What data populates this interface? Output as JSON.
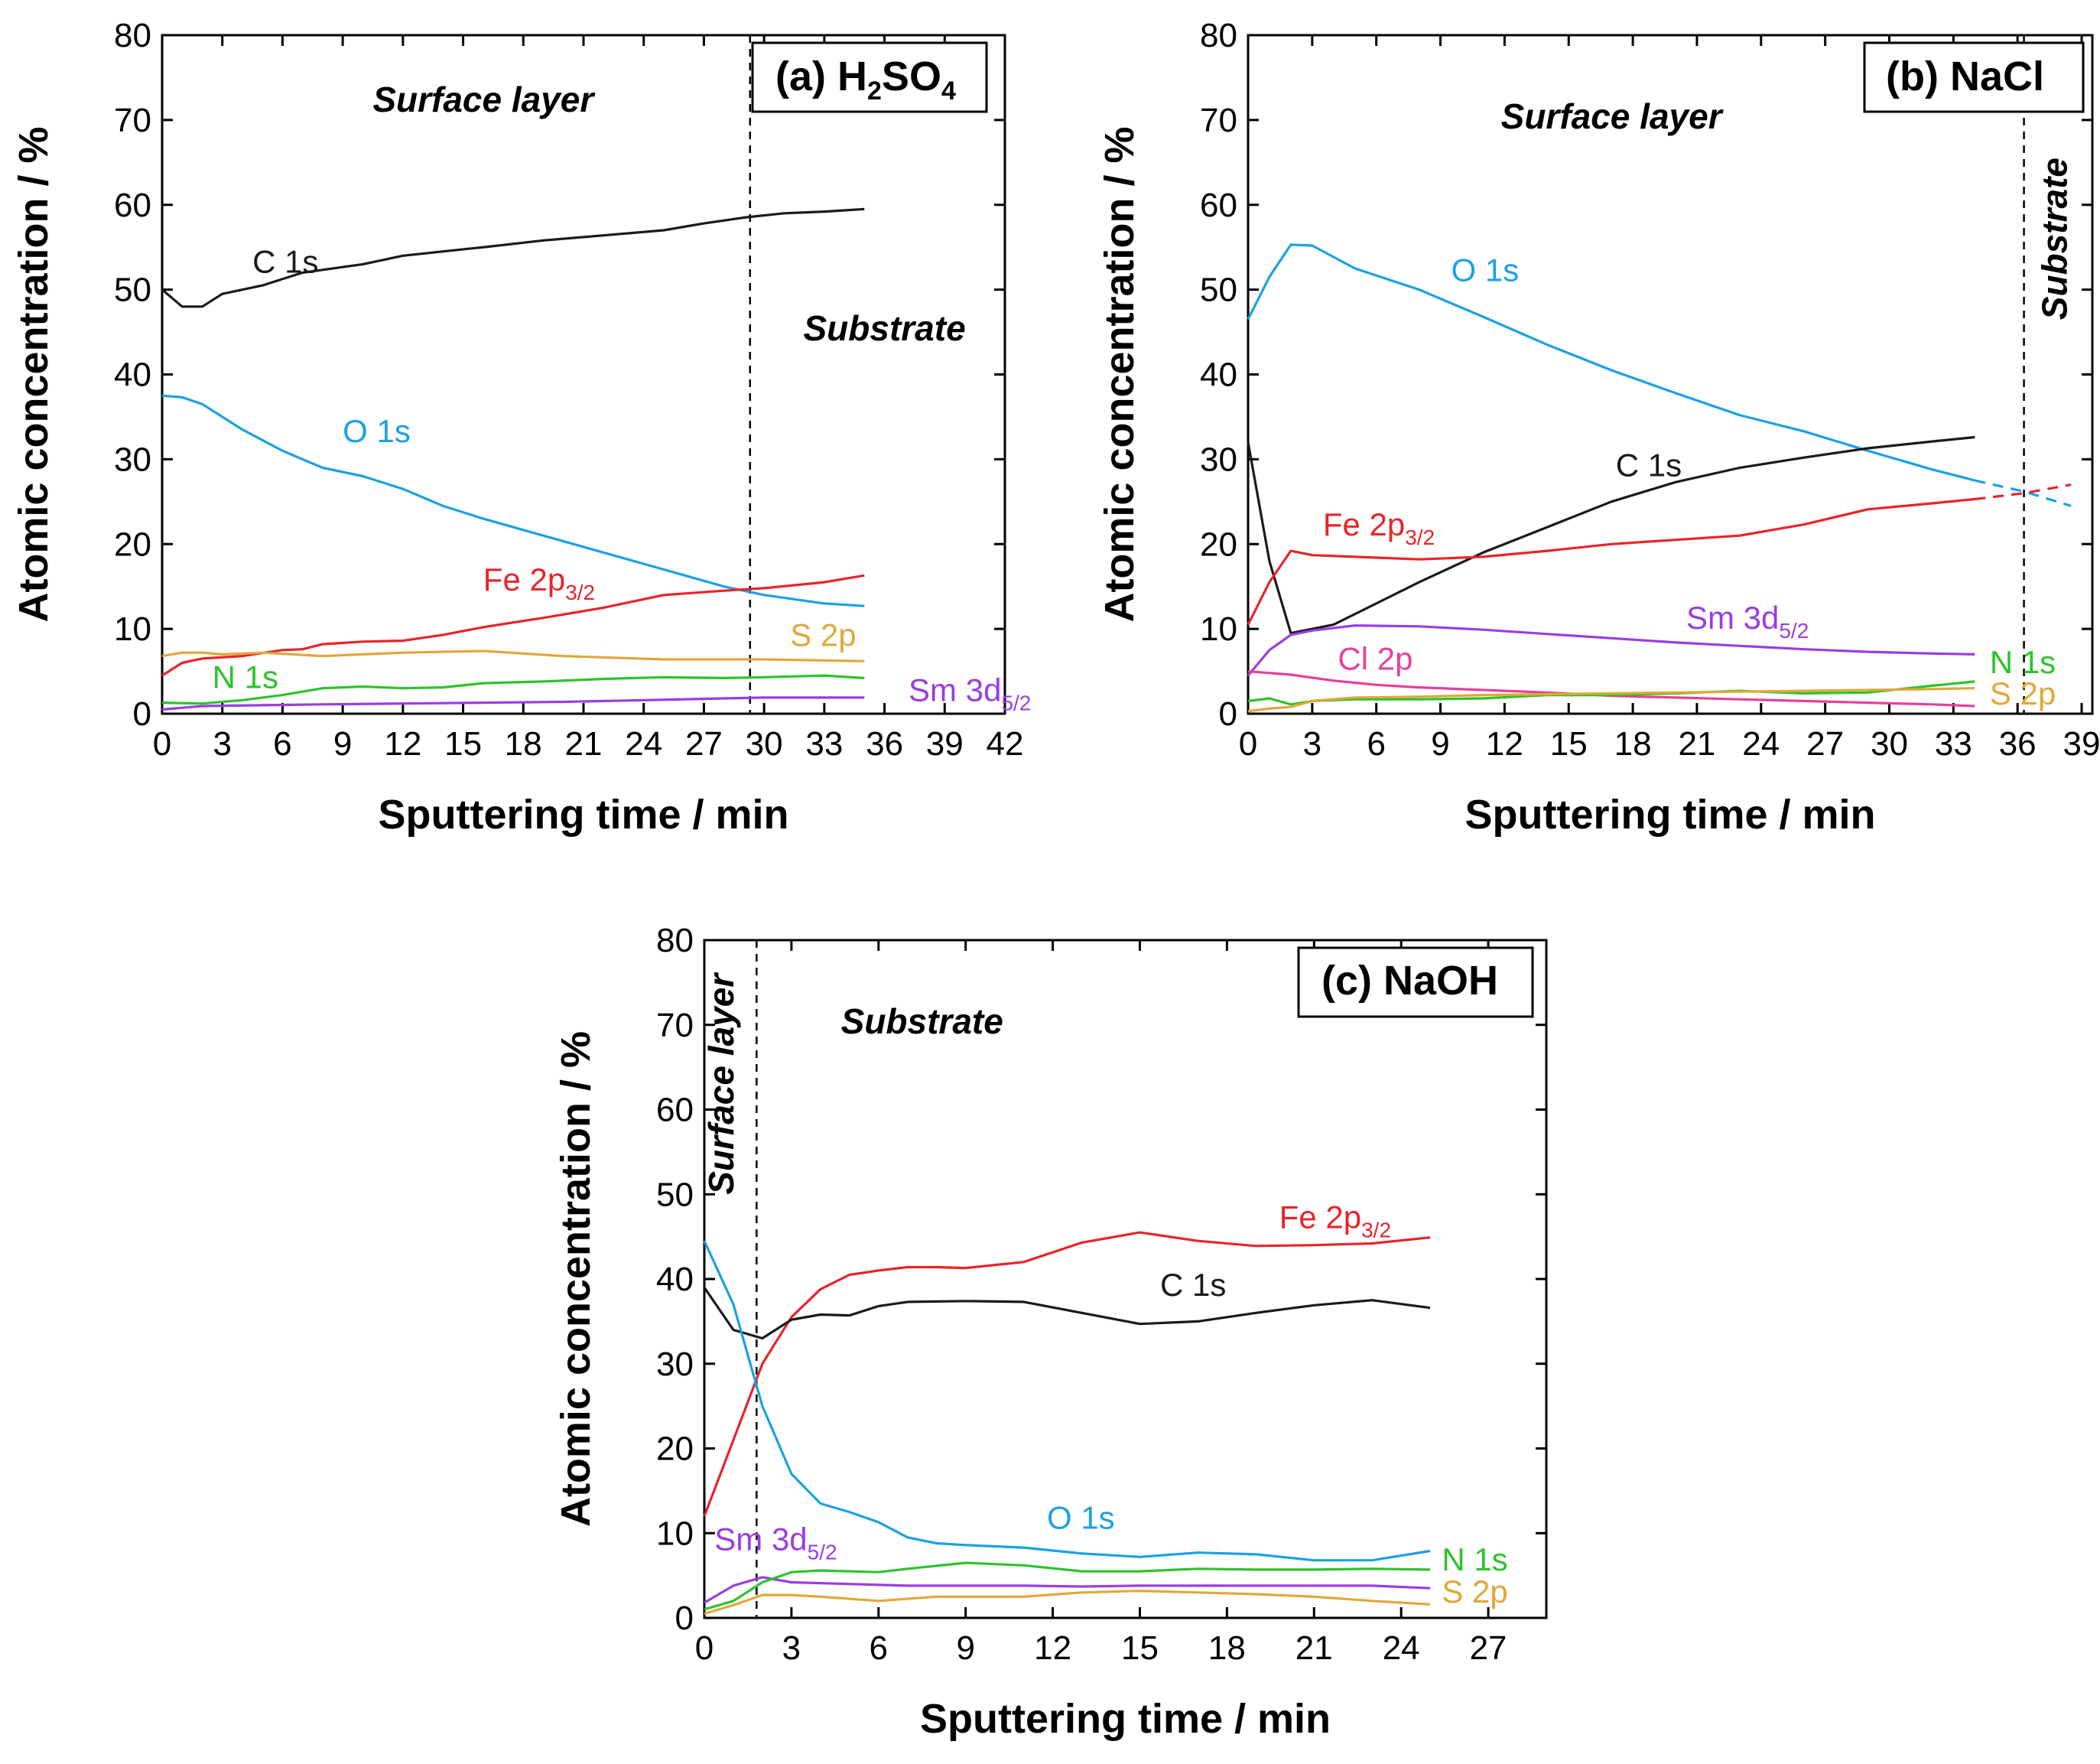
{
  "figure": {
    "x_axis_title": "Sputtering time / min",
    "y_axis_title": "Atomic concentration / %"
  },
  "chart_data": [
    {
      "type": "line",
      "id": "a",
      "title": "(a) H2SO4",
      "title_parts": {
        "prefix": "(a) H",
        "sub1": "2",
        "mid": "SO",
        "sub2": "4"
      },
      "xlabel": "Sputtering time / min",
      "ylabel": "Atomic concentration / %",
      "xlim": [
        0,
        42
      ],
      "ylim": [
        0,
        80
      ],
      "xticks": [
        0,
        3,
        6,
        9,
        12,
        15,
        18,
        21,
        24,
        27,
        30,
        33,
        36,
        39,
        42
      ],
      "yticks": [
        0,
        10,
        20,
        30,
        40,
        50,
        60,
        70,
        80
      ],
      "divider_x": 29.3,
      "regions": [
        {
          "text": "Surface layer",
          "x": 16,
          "y": 71,
          "rotate": false
        },
        {
          "text": "Substrate",
          "x": 36,
          "y": 44,
          "rotate": false
        }
      ],
      "series": [
        {
          "name": "C 1s",
          "label_main": "C 1s",
          "label_sub": "",
          "color": "#1a1a1a",
          "label_pos": [
            4.5,
            52
          ],
          "x": [
            0,
            1,
            2,
            3,
            5,
            7,
            10,
            12,
            14,
            16,
            19,
            22,
            25,
            27,
            29,
            31,
            33,
            35
          ],
          "y": [
            50,
            48,
            48,
            49.5,
            50.5,
            52,
            53,
            54,
            54.5,
            55,
            55.8,
            56.4,
            57,
            57.8,
            58.5,
            59,
            59.2,
            59.5
          ]
        },
        {
          "name": "O 1s",
          "label_main": "O 1s",
          "label_sub": "",
          "color": "#1ba1e2",
          "label_pos": [
            9,
            32
          ],
          "x": [
            0,
            1,
            2,
            3,
            4,
            6,
            8,
            10,
            12,
            14,
            16,
            19,
            22,
            25,
            28,
            30,
            33,
            35
          ],
          "y": [
            37.5,
            37.3,
            36.5,
            35,
            33.5,
            31,
            29,
            28,
            26.5,
            24.5,
            23,
            21,
            19,
            17,
            15,
            14,
            13,
            12.7
          ]
        },
        {
          "name": "Fe 2p3/2",
          "label_main": "Fe 2p",
          "label_sub": "3/2",
          "color": "#e8242a",
          "label_pos": [
            16,
            14.5
          ],
          "x": [
            0,
            1,
            2,
            4,
            6,
            7,
            8,
            10,
            12,
            14,
            16,
            19,
            22,
            25,
            28,
            30,
            33,
            35
          ],
          "y": [
            4.5,
            6,
            6.5,
            6.8,
            7.5,
            7.6,
            8.2,
            8.5,
            8.6,
            9.3,
            10.2,
            11.3,
            12.5,
            14,
            14.5,
            14.8,
            15.5,
            16.3
          ]
        },
        {
          "name": "S 2p",
          "label_main": "S 2p",
          "label_sub": "",
          "color": "#e0a83a",
          "label_pos": [
            31.3,
            8
          ],
          "x": [
            0,
            1,
            2,
            3,
            5,
            8,
            12,
            16,
            20,
            25,
            30,
            35
          ],
          "y": [
            6.8,
            7.2,
            7.2,
            7,
            7.2,
            6.8,
            7.2,
            7.4,
            6.8,
            6.4,
            6.4,
            6.2
          ]
        },
        {
          "name": "N 1s",
          "label_main": "N 1s",
          "label_sub": "",
          "color": "#2ec22e",
          "label_pos": [
            2.5,
            3
          ],
          "x": [
            0,
            2,
            4,
            6,
            8,
            10,
            12,
            14,
            16,
            19,
            22,
            25,
            28,
            30,
            33,
            35
          ],
          "y": [
            1.3,
            1.2,
            1.6,
            2.2,
            3,
            3.2,
            3,
            3.1,
            3.6,
            3.8,
            4.1,
            4.3,
            4.2,
            4.3,
            4.5,
            4.2
          ]
        },
        {
          "name": "Sm 3d5/2",
          "label_main": "Sm 3d",
          "label_sub": "5/2",
          "color": "#9b3de0",
          "label_pos": [
            37.2,
            1.5
          ],
          "x": [
            0,
            2,
            5,
            8,
            12,
            16,
            20,
            24,
            28,
            30,
            33,
            35
          ],
          "y": [
            0.5,
            0.9,
            1,
            1.1,
            1.2,
            1.3,
            1.4,
            1.6,
            1.8,
            1.9,
            1.9,
            1.9
          ]
        }
      ]
    },
    {
      "type": "line",
      "id": "b",
      "title": "(b) NaCl",
      "xlabel": "Sputtering time / min",
      "ylabel": "Atomic concentration / %",
      "xlim": [
        0,
        39.5
      ],
      "ylim": [
        0,
        80
      ],
      "xticks": [
        0,
        3,
        6,
        9,
        12,
        15,
        18,
        21,
        24,
        27,
        30,
        33,
        36,
        39
      ],
      "yticks": [
        0,
        10,
        20,
        30,
        40,
        50,
        60,
        70,
        80
      ],
      "divider_x": 36.3,
      "regions": [
        {
          "text": "Surface layer",
          "x": 17,
          "y": 69,
          "rotate": false
        },
        {
          "text": "Substrate",
          "x": 38.3,
          "y": 56,
          "rotate": true
        }
      ],
      "series": [
        {
          "name": "O 1s",
          "label_main": "O 1s",
          "label_sub": "",
          "color": "#1ba1e2",
          "label_pos": [
            9.5,
            51
          ],
          "x": [
            0,
            1,
            2,
            3,
            5,
            8,
            11,
            14,
            17,
            20,
            23,
            26,
            29,
            32,
            34
          ],
          "y": [
            46.5,
            51.5,
            55.3,
            55.2,
            52.5,
            50,
            46.8,
            43.5,
            40.5,
            37.8,
            35.2,
            33.3,
            31,
            28.8,
            27.5
          ],
          "extension": {
            "x": [
              34,
              36.3,
              38.5
            ],
            "y": [
              27.5,
              26.2,
              24.5
            ]
          }
        },
        {
          "name": "C 1s",
          "label_main": "C 1s",
          "label_sub": "",
          "color": "#1a1a1a",
          "label_pos": [
            17.2,
            28
          ],
          "x": [
            0,
            1,
            2,
            4,
            8,
            11,
            14,
            17,
            20,
            23,
            26,
            29,
            32,
            34
          ],
          "y": [
            32,
            18,
            9.5,
            10.5,
            15.5,
            19,
            22,
            25,
            27.3,
            29,
            30.2,
            31.3,
            32.1,
            32.6
          ]
        },
        {
          "name": "Fe 2p3/2",
          "label_main": "Fe 2p",
          "label_sub": "3/2",
          "color": "#e8242a",
          "label_pos": [
            3.5,
            21
          ],
          "x": [
            0,
            1,
            2,
            3,
            5,
            8,
            11,
            14,
            17,
            20,
            23,
            26,
            29,
            32,
            34
          ],
          "y": [
            10.5,
            15.5,
            19.2,
            18.7,
            18.5,
            18.2,
            18.5,
            19.2,
            20,
            20.5,
            21,
            22.3,
            24.1,
            24.8,
            25.3
          ],
          "extension": {
            "x": [
              34,
              36.3,
              38.5
            ],
            "y": [
              25.3,
              26,
              27
            ]
          }
        },
        {
          "name": "Sm 3d5/2",
          "label_main": "Sm 3d",
          "label_sub": "5/2",
          "color": "#9b3de0",
          "label_pos": [
            20.5,
            10
          ],
          "x": [
            0,
            1,
            2,
            3,
            5,
            8,
            11,
            14,
            17,
            20,
            23,
            26,
            29,
            32,
            34
          ],
          "y": [
            4.5,
            7.5,
            9.3,
            9.8,
            10.4,
            10.3,
            9.9,
            9.4,
            8.9,
            8.4,
            8,
            7.6,
            7.3,
            7.1,
            7
          ]
        },
        {
          "name": "Cl 2p",
          "label_main": "Cl 2p",
          "label_sub": "",
          "color": "#e6409a",
          "label_pos": [
            4.2,
            5.2
          ],
          "x": [
            0,
            2,
            4,
            6,
            8,
            11,
            14,
            17,
            20,
            23,
            26,
            29,
            32,
            34
          ],
          "y": [
            5,
            4.6,
            3.9,
            3.4,
            3.1,
            2.8,
            2.5,
            2.1,
            1.9,
            1.7,
            1.5,
            1.3,
            1.1,
            0.9
          ]
        },
        {
          "name": "N 1s",
          "label_main": "N 1s",
          "label_sub": "",
          "color": "#2ec22e",
          "label_pos": [
            34.7,
            4.8
          ],
          "x": [
            0,
            1,
            2,
            3,
            5,
            8,
            11,
            14,
            17,
            20,
            23,
            26,
            29,
            32,
            34
          ],
          "y": [
            1.5,
            1.8,
            1.1,
            1.5,
            1.7,
            1.7,
            1.8,
            2.2,
            2.2,
            2.4,
            2.7,
            2.4,
            2.5,
            3.3,
            3.8
          ]
        },
        {
          "name": "S 2p",
          "label_main": "S 2p",
          "label_sub": "",
          "color": "#e0a83a",
          "label_pos": [
            34.7,
            1.1
          ],
          "x": [
            0,
            1,
            2,
            3,
            5,
            8,
            11,
            14,
            17,
            20,
            23,
            26,
            29,
            32,
            34
          ],
          "y": [
            0.3,
            0.6,
            0.8,
            1.5,
            1.9,
            2,
            2.2,
            2.3,
            2.4,
            2.5,
            2.6,
            2.7,
            2.8,
            2.9,
            3
          ]
        }
      ]
    },
    {
      "type": "line",
      "id": "c",
      "title": "(c) NaOH",
      "xlabel": "Sputtering time / min",
      "ylabel": "Atomic concentration / %",
      "xlim": [
        0,
        29
      ],
      "ylim": [
        0,
        80
      ],
      "xticks": [
        0,
        3,
        6,
        9,
        12,
        15,
        18,
        21,
        24,
        27
      ],
      "yticks": [
        0,
        10,
        20,
        30,
        40,
        50,
        60,
        70,
        80
      ],
      "divider_x": 1.8,
      "regions": [
        {
          "text": "Surface layer",
          "x": 1.0,
          "y": 63,
          "rotate": true
        },
        {
          "text": "Substrate",
          "x": 7.5,
          "y": 69,
          "rotate": false
        }
      ],
      "series": [
        {
          "name": "Fe 2p3/2",
          "label_main": "Fe 2p",
          "label_sub": "3/2",
          "color": "#e8242a",
          "label_pos": [
            19.8,
            46
          ],
          "x": [
            0,
            1,
            2,
            3,
            4,
            5,
            6,
            7,
            8,
            9,
            11,
            13,
            15,
            17,
            19,
            21,
            23,
            25
          ],
          "y": [
            12,
            21,
            30,
            35.5,
            38.8,
            40.5,
            41,
            41.4,
            41.4,
            41.3,
            42,
            44.3,
            45.5,
            44.5,
            43.9,
            44,
            44.2,
            44.9
          ]
        },
        {
          "name": "C 1s",
          "label_main": "C 1s",
          "label_sub": "",
          "color": "#1a1a1a",
          "label_pos": [
            15.7,
            38
          ],
          "x": [
            0,
            1,
            2,
            3,
            4,
            5,
            6,
            7,
            9,
            11,
            13,
            15,
            17,
            19,
            21,
            23,
            25
          ],
          "y": [
            39,
            34,
            33,
            35.2,
            35.8,
            35.7,
            36.8,
            37.3,
            37.4,
            37.3,
            36,
            34.7,
            35,
            36,
            36.9,
            37.5,
            36.6
          ]
        },
        {
          "name": "O 1s",
          "label_main": "O 1s",
          "label_sub": "",
          "color": "#1ba1e2",
          "label_pos": [
            11.8,
            10.5
          ],
          "x": [
            0,
            1,
            2,
            3,
            4,
            5,
            6,
            7,
            8,
            9,
            11,
            13,
            15,
            17,
            19,
            21,
            23,
            25
          ],
          "y": [
            44.5,
            37,
            25,
            17,
            13.5,
            12.5,
            11.3,
            9.5,
            8.8,
            8.6,
            8.3,
            7.6,
            7.2,
            7.7,
            7.5,
            6.8,
            6.8,
            7.9
          ]
        },
        {
          "name": "Sm 3d5/2",
          "label_main": "Sm 3d",
          "label_sub": "5/2",
          "color": "#9b3de0",
          "label_pos": [
            0.35,
            8
          ],
          "x": [
            0,
            1,
            2,
            3,
            5,
            7,
            9,
            11,
            13,
            15,
            17,
            19,
            21,
            23,
            25
          ],
          "y": [
            1.8,
            3.8,
            4.8,
            4.2,
            4,
            3.8,
            3.8,
            3.8,
            3.7,
            3.8,
            3.8,
            3.8,
            3.8,
            3.8,
            3.5
          ]
        },
        {
          "name": "N 1s",
          "label_main": "N 1s",
          "label_sub": "",
          "color": "#2ec22e",
          "label_pos": [
            25.4,
            5.6
          ],
          "x": [
            0,
            1,
            2,
            3,
            4,
            6,
            7,
            9,
            11,
            13,
            15,
            17,
            19,
            21,
            23,
            25
          ],
          "y": [
            1,
            2,
            4.2,
            5.4,
            5.6,
            5.4,
            5.8,
            6.5,
            6.2,
            5.5,
            5.5,
            5.8,
            5.7,
            5.7,
            5.8,
            5.7
          ]
        },
        {
          "name": "S 2p",
          "label_main": "S 2p",
          "label_sub": "",
          "color": "#e0a83a",
          "label_pos": [
            25.4,
            1.8
          ],
          "x": [
            0,
            1,
            2,
            3,
            4,
            6,
            8,
            11,
            13,
            15,
            17,
            19,
            21,
            23,
            25
          ],
          "y": [
            0.5,
            1.5,
            2.7,
            2.7,
            2.5,
            2,
            2.5,
            2.5,
            3,
            3.2,
            3,
            2.8,
            2.5,
            2,
            1.6
          ]
        }
      ]
    }
  ]
}
